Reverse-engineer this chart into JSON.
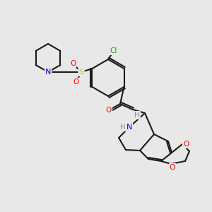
{
  "bg_color": "#e8e8e8",
  "bond_color": "#1a1a1a",
  "bond_lw": 1.5,
  "atom_colors": {
    "N": "#0000ff",
    "O": "#ff0000",
    "S": "#cccc00",
    "Cl": "#00aa00",
    "H": "#888888",
    "C": "#1a1a1a"
  },
  "font_size": 7.5
}
